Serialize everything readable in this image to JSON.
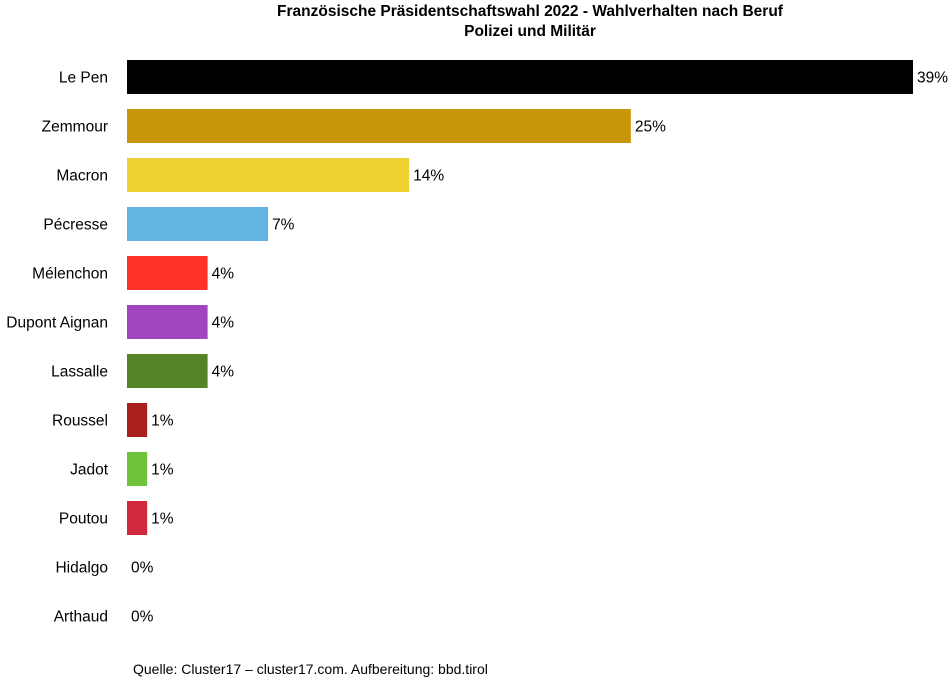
{
  "chart_data": {
    "type": "bar",
    "orientation": "horizontal",
    "title": "Französische Präsidentschaftswahl 2022 - Wahlverhalten nach Beruf",
    "subtitle": "Polizei und Militär",
    "categories": [
      "Le Pen",
      "Zemmour",
      "Macron",
      "Pécresse",
      "Mélenchon",
      "Dupont Aignan",
      "Lassalle",
      "Roussel",
      "Jadot",
      "Poutou",
      "Hidalgo",
      "Arthaud"
    ],
    "values": [
      39,
      25,
      14,
      7,
      4,
      4,
      4,
      1,
      1,
      1,
      0,
      0
    ],
    "value_labels": [
      "39%",
      "25%",
      "14%",
      "7%",
      "4%",
      "4%",
      "4%",
      "1%",
      "1%",
      "1%",
      "0%",
      "0%"
    ],
    "colors": [
      "#000000",
      "#c8960a",
      "#f0d232",
      "#64b4e1",
      "#ff3228",
      "#a046be",
      "#548426",
      "#aa1e1e",
      "#6ec23c",
      "#d2283c",
      "#e6507a",
      "#c81e1e"
    ],
    "xlim": [
      0,
      39
    ],
    "xlabel": "",
    "ylabel": "",
    "grid": false,
    "legend": "none",
    "source": "Quelle: Cluster17 – cluster17.com. Aufbereitung: bbd.tirol"
  }
}
